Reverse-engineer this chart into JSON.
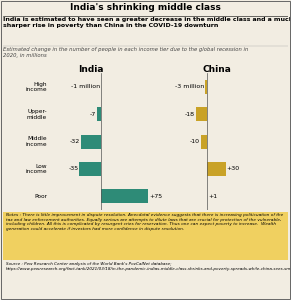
{
  "title": "India's shrinking middle class",
  "subtitle": "India is estimated to have seen a greater decrease in the middle class and a much\nsharper rise in poverty than China in the COVID-19 downturn",
  "caption": "Estimated change in the number of people in each income tier due to the global recession in\n2020, in millions",
  "categories": [
    "High\nincome",
    "Upper-\nmiddle",
    "Middle\nincome",
    "Low\nincome",
    "Poor"
  ],
  "india_values": [
    -1,
    -7,
    -32,
    -35,
    75
  ],
  "china_values": [
    -3,
    -18,
    -10,
    30,
    1
  ],
  "india_labels": [
    "-1 million",
    "-7",
    "-32",
    "-35",
    "+75"
  ],
  "china_labels": [
    "-3 million",
    "-18",
    "-10",
    "+30",
    "+1"
  ],
  "india_color": "#2e8b77",
  "china_color": "#c9a227",
  "notes_bg": "#f0d060",
  "notes_text": "Notes : There is little improvement in dispute resolution. Anecdotal evidence suggests that there is increasing politicuation of the tax and law enforcement authorities. Equally serious are attempts to dilute laws that are crucial for protection of the vulnerable, including children. All this is complicated by resurgent cries for reservation. Thus one can expect poverty to increase.  Wealth generation could accelerate if investors had more confidence in dispute resolution.",
  "source_text": "Source : Pew Research Center analysis of the World Bank's PovCalNet database;\nhttps://www.pewresearch.org/fact-tank/2021/03/18/in-the-pandemic-indias-middle-class-shrinks-and-poverty-spreads-while-china-sees-smaller-changes/ft_2021-03-18_indiachina_01/",
  "bg_color": "#f2ede2",
  "source_bg": "#dbd6cc"
}
